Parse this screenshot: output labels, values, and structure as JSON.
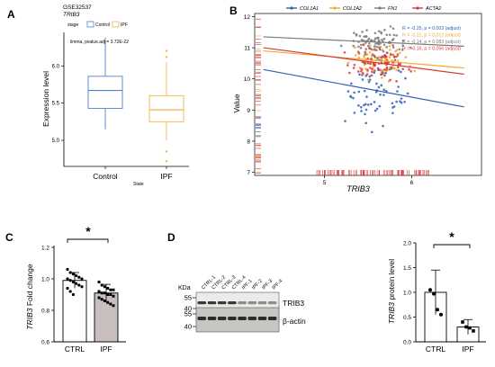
{
  "panels": {
    "A": "A",
    "B": "B",
    "C": "C",
    "D": "D"
  },
  "panel_a": {
    "dataset": "GSE32537",
    "gene": "TRIB3",
    "legend_title": "stage",
    "legend_items": [
      "Control",
      "IPF"
    ],
    "annotation": "limma, pvalue.adj = 3.72E-22",
    "ylabel": "Expression level",
    "xlabel": "State",
    "colors": {
      "Control": "#4a86c5",
      "IPF": "#f0b54a"
    }
  },
  "panel_b": {
    "ylabel": "Value",
    "xlabel": "TRIB3",
    "legend": [
      "COL1A1",
      "COL1A2",
      "FN1",
      "ACTA2"
    ],
    "colors": {
      "COL1A1": "#2f62b5",
      "COL1A2": "#f0a92a",
      "FN1": "#7a7a7a",
      "ACTA2": "#d9373b"
    },
    "stats": [
      "R = -0.25, p = 0.003 (adjust)",
      "R = -0.21, p = 0.012 (adjust)",
      "R = -0.14, p = 0.083 (adjust)",
      "R = -0.16, p = 0.056 (adjust)"
    ]
  },
  "panel_c": {
    "ylabel_gene": "TRIB3",
    "ylabel_rest": " Fold change",
    "significance": "*"
  },
  "panel_d": {
    "kda_label": "KDa",
    "lanes": [
      "CTRL-1",
      "CTRL-2",
      "CTRL-3",
      "CTRL-4",
      "IPF-1",
      "IPF-2",
      "IPF-3",
      "IPF-4"
    ],
    "markers": [
      "55",
      "40",
      "55",
      "40"
    ],
    "band_labels": [
      "TRIB3",
      "β-actin"
    ],
    "significance": "*"
  },
  "chart_data": [
    {
      "type": "box",
      "panel": "A",
      "categories": [
        "Control",
        "IPF"
      ],
      "boxes": [
        {
          "name": "Control",
          "min": 5.15,
          "q1": 5.43,
          "median": 5.67,
          "q3": 5.86,
          "max": 6.38,
          "outliers": []
        },
        {
          "name": "IPF",
          "min": 5.0,
          "q1": 5.25,
          "median": 5.41,
          "q3": 5.6,
          "max": 6.05,
          "outliers": [
            6.12,
            6.2,
            4.85,
            4.72
          ]
        }
      ],
      "ylim": [
        4.65,
        6.45
      ],
      "yticks": [
        5.0,
        5.5,
        6.0
      ]
    },
    {
      "type": "scatter",
      "panel": "B",
      "xlim": [
        4.2,
        6.8
      ],
      "ylim": [
        6.9,
        12.1
      ],
      "xticks": [
        5,
        6
      ],
      "yticks": [
        7,
        8,
        9,
        10,
        11,
        12
      ],
      "series": [
        {
          "name": "COL1A1",
          "fit": [
            [
              4.3,
              10.3
            ],
            [
              6.6,
              9.1
            ]
          ]
        },
        {
          "name": "COL1A2",
          "fit": [
            [
              4.3,
              10.9
            ],
            [
              6.6,
              10.35
            ]
          ]
        },
        {
          "name": "FN1",
          "fit": [
            [
              4.3,
              11.35
            ],
            [
              6.6,
              11.05
            ]
          ]
        },
        {
          "name": "ACTA2",
          "fit": [
            [
              4.3,
              11.0
            ],
            [
              6.6,
              10.15
            ]
          ]
        }
      ]
    },
    {
      "type": "bar",
      "panel": "C",
      "categories": [
        "CTRL",
        "IPF"
      ],
      "values": [
        0.99,
        0.91
      ],
      "errors": [
        0.05,
        0.055
      ],
      "ylim": [
        0.6,
        1.2
      ],
      "yticks": [
        0.6,
        0.8,
        1.0,
        1.2
      ],
      "points": [
        [
          1.06,
          1.04,
          1.03,
          1.02,
          1.01,
          1.0,
          1.0,
          0.99,
          0.98,
          0.97,
          0.96,
          0.95,
          0.94,
          0.92,
          0.9
        ],
        [
          0.98,
          0.96,
          0.95,
          0.94,
          0.93,
          0.93,
          0.92,
          0.91,
          0.91,
          0.9,
          0.9,
          0.89,
          0.88,
          0.87,
          0.86,
          0.85,
          0.84,
          0.83
        ]
      ]
    },
    {
      "type": "bar",
      "panel": "D",
      "categories": [
        "CTRL",
        "IPF"
      ],
      "values": [
        1.0,
        0.3
      ],
      "errors": [
        0.45,
        0.15
      ],
      "ylim": [
        0,
        2
      ],
      "yticks": [
        0.0,
        0.5,
        1.0,
        1.5,
        2.0
      ],
      "ylabel_gene": "TRIB3",
      "ylabel_rest": " protein level",
      "points": [
        [
          1.05,
          0.97,
          0.65,
          0.55
        ],
        [
          0.4,
          0.3,
          0.28,
          0.22
        ]
      ]
    }
  ]
}
